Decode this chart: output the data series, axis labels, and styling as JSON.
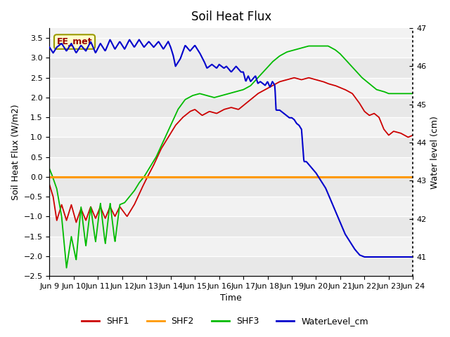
{
  "title": "Soil Heat Flux",
  "ylabel_left": "Soil Heat Flux (W/m2)",
  "ylabel_right": "Water level (cm)",
  "xlabel": "Time",
  "annotation_text": "EE_met",
  "xlim": [
    0,
    15
  ],
  "ylim_left": [
    -2.5,
    3.75
  ],
  "ylim_right": [
    40.5,
    47.0
  ],
  "xtick_labels": [
    "Jun 9",
    "Jun 10",
    "Jun 11",
    "Jun 12",
    "Jun 13",
    "Jun 14",
    "Jun 15",
    "Jun 16",
    "Jun 17",
    "Jun 18",
    "Jun 19",
    "Jun 20",
    "Jun 21",
    "Jun 22",
    "Jun 23",
    "Jun 24"
  ],
  "bg_color_light": "#e8e8e8",
  "bg_color_white": "#f5f5f5",
  "legend_labels": [
    "SHF1",
    "SHF2",
    "SHF3",
    "WaterLevel_cm"
  ],
  "legend_colors": [
    "#cc0000",
    "#ff9900",
    "#00bb00",
    "#0000cc"
  ],
  "shf1_color": "#cc0000",
  "shf2_color": "#ff9900",
  "shf3_color": "#00bb00",
  "wl_color": "#0000cc",
  "annotation_bg": "#ffffcc",
  "annotation_border": "#999900"
}
